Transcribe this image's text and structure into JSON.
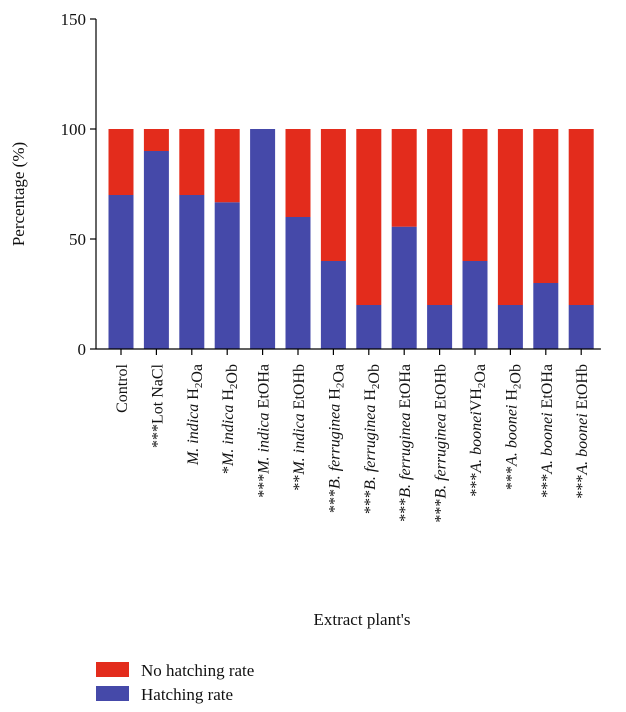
{
  "chart_data": {
    "type": "bar",
    "stacked": true,
    "xlabel": "Extract plant's",
    "ylabel": "Percentage (%)",
    "ylim": [
      0,
      150
    ],
    "yticks": [
      0,
      50,
      100,
      150
    ],
    "grid": false,
    "legend_position": "bottom-left",
    "categories": [
      {
        "segments": [
          {
            "t": "Control"
          }
        ]
      },
      {
        "segments": [
          {
            "t": "***Lot NaCl"
          }
        ]
      },
      {
        "segments": [
          {
            "t": "M. indica",
            "i": true
          },
          {
            "t": " H"
          },
          {
            "t": "2",
            "sub": true
          },
          {
            "t": "Oa"
          }
        ]
      },
      {
        "segments": [
          {
            "t": "*"
          },
          {
            "t": "M. indica",
            "i": true
          },
          {
            "t": " H"
          },
          {
            "t": "2",
            "sub": true
          },
          {
            "t": "Ob"
          }
        ]
      },
      {
        "segments": [
          {
            "t": "***"
          },
          {
            "t": "M. indica",
            "i": true
          },
          {
            "t": " EtOHa"
          }
        ]
      },
      {
        "segments": [
          {
            "t": "**"
          },
          {
            "t": "M. indica",
            "i": true
          },
          {
            "t": " EtOHb"
          }
        ]
      },
      {
        "segments": [
          {
            "t": "***"
          },
          {
            "t": "B. ferruginea",
            "i": true
          },
          {
            "t": " H"
          },
          {
            "t": "2",
            "sub": true
          },
          {
            "t": "Oa"
          }
        ]
      },
      {
        "segments": [
          {
            "t": "***"
          },
          {
            "t": "B. ferruginea",
            "i": true
          },
          {
            "t": " H"
          },
          {
            "t": "2",
            "sub": true
          },
          {
            "t": "Ob"
          }
        ]
      },
      {
        "segments": [
          {
            "t": "***"
          },
          {
            "t": "B. ferruginea",
            "i": true
          },
          {
            "t": " EtOHa"
          }
        ]
      },
      {
        "segments": [
          {
            "t": "***"
          },
          {
            "t": "B. ferruginea",
            "i": true
          },
          {
            "t": " EtOHb"
          }
        ]
      },
      {
        "segments": [
          {
            "t": "***"
          },
          {
            "t": "A. boonei",
            "i": true
          },
          {
            "t": "VH"
          },
          {
            "t": "2",
            "sub": true
          },
          {
            "t": "Oa"
          }
        ]
      },
      {
        "segments": [
          {
            "t": "***"
          },
          {
            "t": "A. boonei",
            "i": true
          },
          {
            "t": " H"
          },
          {
            "t": "2",
            "sub": true
          },
          {
            "t": "Ob"
          }
        ]
      },
      {
        "segments": [
          {
            "t": "***"
          },
          {
            "t": "A. boonei",
            "i": true
          },
          {
            "t": " EtOHa"
          }
        ]
      },
      {
        "segments": [
          {
            "t": "***"
          },
          {
            "t": "A. boonei",
            "i": true
          },
          {
            "t": " EtOHb"
          }
        ]
      }
    ],
    "series": [
      {
        "name": "Hatching rate",
        "color": "#4549a9",
        "values": [
          70,
          90,
          70,
          66.7,
          100,
          60,
          40,
          20,
          55.6,
          20,
          40,
          20,
          30,
          20
        ]
      },
      {
        "name": "No hatching rate",
        "color": "#e32c1c",
        "values": [
          30,
          10,
          30,
          33.3,
          0,
          40,
          60,
          80,
          44.4,
          80,
          60,
          80,
          70,
          80
        ]
      }
    ],
    "legend_order": [
      1,
      0
    ]
  }
}
